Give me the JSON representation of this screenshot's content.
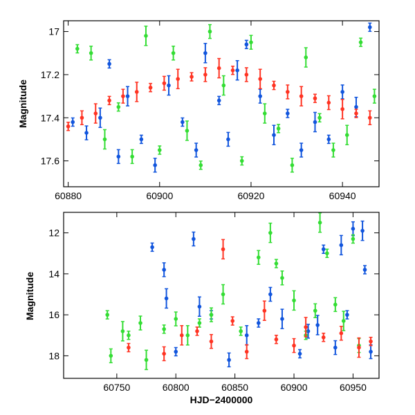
{
  "colors": {
    "green": "#33dd33",
    "blue": "#1155dd",
    "red": "#ff3322",
    "band": "#ff3322"
  },
  "chart_data": [
    {
      "type": "scatter",
      "title": "",
      "xlabel": "",
      "ylabel": "Magnitude",
      "xlim": [
        60879,
        60948
      ],
      "ylim": [
        17.72,
        16.95
      ],
      "y_inverted": true,
      "grid": false,
      "xticks": [
        60880,
        60900,
        60920,
        60940
      ],
      "xtick_labels": [
        "60880",
        "60900",
        "60920",
        "60940"
      ],
      "yticks": [
        17,
        17.2,
        17.4,
        17.6
      ],
      "ytick_labels": [
        "17",
        "17.2",
        "17.4",
        "17.6"
      ],
      "series": [
        {
          "color": "#1155dd",
          "points": [
            [
              60881,
              17.42
            ],
            [
              60884,
              17.47
            ],
            [
              60887,
              17.4
            ],
            [
              60889,
              17.15
            ],
            [
              60891,
              17.58
            ],
            [
              60893,
              17.3
            ],
            [
              60896,
              17.5
            ],
            [
              60899,
              17.62
            ],
            [
              60902,
              17.25
            ],
            [
              60905,
              17.42
            ],
            [
              60908,
              17.55
            ],
            [
              60910,
              17.1
            ],
            [
              60913,
              17.32
            ],
            [
              60915,
              17.5
            ],
            [
              60917,
              17.18
            ],
            [
              60919,
              17.06
            ],
            [
              60922,
              17.3
            ],
            [
              60925,
              17.48
            ],
            [
              60928,
              17.38
            ],
            [
              60931,
              17.55
            ],
            [
              60934,
              17.42
            ],
            [
              60937,
              17.5
            ],
            [
              60940,
              17.28
            ],
            [
              60943,
              17.35
            ],
            [
              60946,
              16.98
            ]
          ]
        },
        {
          "color": "#33dd33",
          "points": [
            [
              60882,
              17.08
            ],
            [
              60885,
              17.1
            ],
            [
              60888,
              17.5
            ],
            [
              60891,
              17.35
            ],
            [
              60894,
              17.58
            ],
            [
              60897,
              17.02
            ],
            [
              60900,
              17.55
            ],
            [
              60903,
              17.1
            ],
            [
              60906,
              17.46
            ],
            [
              60909,
              17.62
            ],
            [
              60911,
              17.0
            ],
            [
              60914,
              17.25
            ],
            [
              60918,
              17.6
            ],
            [
              60920,
              17.05
            ],
            [
              60923,
              17.38
            ],
            [
              60926,
              17.45
            ],
            [
              60929,
              17.62
            ],
            [
              60932,
              17.12
            ],
            [
              60935,
              17.4
            ],
            [
              60938,
              17.55
            ],
            [
              60941,
              17.48
            ],
            [
              60944,
              17.05
            ],
            [
              60947,
              17.3
            ]
          ]
        },
        {
          "color": "#ff3322",
          "points": [
            [
              60880,
              17.44
            ],
            [
              60883,
              17.4
            ],
            [
              60886,
              17.38
            ],
            [
              60889,
              17.32
            ],
            [
              60892,
              17.3
            ],
            [
              60895,
              17.28
            ],
            [
              60898,
              17.26
            ],
            [
              60901,
              17.24
            ],
            [
              60904,
              17.22
            ],
            [
              60907,
              17.21
            ],
            [
              60910,
              17.2
            ],
            [
              60913,
              17.17
            ],
            [
              60916,
              17.18
            ],
            [
              60919,
              17.2
            ],
            [
              60922,
              17.22
            ],
            [
              60925,
              17.25
            ],
            [
              60928,
              17.28
            ],
            [
              60931,
              17.3
            ],
            [
              60934,
              17.31
            ],
            [
              60937,
              17.33
            ],
            [
              60940,
              17.36
            ],
            [
              60943,
              17.38
            ],
            [
              60946,
              17.4
            ]
          ]
        }
      ]
    },
    {
      "type": "scatter",
      "title": "",
      "xlabel": "HJD−2400000",
      "ylabel": "Magnitude",
      "xlim": [
        60705,
        60972
      ],
      "ylim": [
        19.1,
        11.0
      ],
      "y_inverted": true,
      "grid": false,
      "xticks": [
        60750,
        60800,
        60850,
        60900,
        60950
      ],
      "xtick_labels": [
        "60750",
        "60800",
        "60850",
        "60900",
        "60950"
      ],
      "yticks": [
        12,
        14,
        16,
        18
      ],
      "ytick_labels": [
        "12",
        "14",
        "16",
        "18"
      ],
      "series": [
        {
          "color": "#1155dd",
          "points": [
            [
              60780,
              12.7
            ],
            [
              60790,
              13.8
            ],
            [
              60792,
              15.2
            ],
            [
              60800,
              17.8
            ],
            [
              60815,
              12.3
            ],
            [
              60820,
              15.6
            ],
            [
              60830,
              16.0
            ],
            [
              60845,
              18.2
            ],
            [
              60860,
              17.0
            ],
            [
              60870,
              16.4
            ],
            [
              60880,
              15.0
            ],
            [
              60890,
              16.2
            ],
            [
              60905,
              17.9
            ],
            [
              60912,
              16.8
            ],
            [
              60920,
              16.5
            ],
            [
              60925,
              12.8
            ],
            [
              60935,
              17.6
            ],
            [
              60940,
              12.6
            ],
            [
              60945,
              16.0
            ],
            [
              60950,
              11.8
            ],
            [
              60958,
              11.9
            ],
            [
              60960,
              13.8
            ],
            [
              60965,
              17.8
            ]
          ]
        },
        {
          "color": "#33dd33",
          "points": [
            [
              60742,
              16.0
            ],
            [
              60745,
              18.0
            ],
            [
              60755,
              16.8
            ],
            [
              60760,
              17.0
            ],
            [
              60770,
              16.4
            ],
            [
              60775,
              18.2
            ],
            [
              60790,
              16.7
            ],
            [
              60800,
              16.2
            ],
            [
              60810,
              17.0
            ],
            [
              60820,
              16.4
            ],
            [
              60830,
              16.0
            ],
            [
              60840,
              15.0
            ],
            [
              60855,
              16.8
            ],
            [
              60870,
              13.2
            ],
            [
              60880,
              12.0
            ],
            [
              60885,
              13.5
            ],
            [
              60890,
              14.2
            ],
            [
              60900,
              15.3
            ],
            [
              60910,
              17.0
            ],
            [
              60918,
              15.8
            ],
            [
              60922,
              11.5
            ],
            [
              60928,
              13.0
            ],
            [
              60935,
              15.5
            ],
            [
              60942,
              16.3
            ],
            [
              60950,
              12.3
            ],
            [
              60955,
              17.5
            ]
          ]
        },
        {
          "color": "#ff3322",
          "points": [
            [
              60760,
              17.6
            ],
            [
              60790,
              17.9
            ],
            [
              60805,
              17.0
            ],
            [
              60818,
              16.8
            ],
            [
              60830,
              17.3
            ],
            [
              60840,
              12.8
            ],
            [
              60848,
              16.3
            ],
            [
              60860,
              17.8
            ],
            [
              60875,
              15.8
            ],
            [
              60885,
              17.2
            ],
            [
              60900,
              17.5
            ],
            [
              60910,
              16.6
            ],
            [
              60925,
              17.1
            ],
            [
              60940,
              16.9
            ],
            [
              60955,
              17.6
            ],
            [
              60965,
              17.3
            ]
          ]
        }
      ]
    }
  ]
}
